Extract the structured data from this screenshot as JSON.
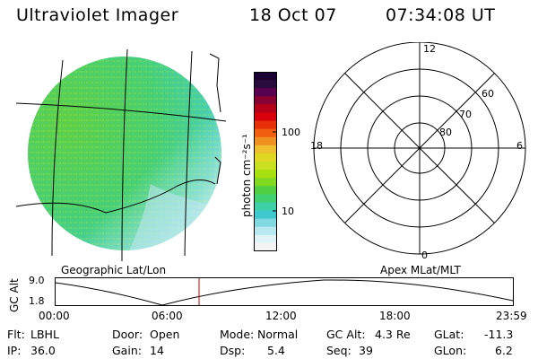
{
  "header": {
    "title": "Ultraviolet Imager",
    "date": "18 Oct 07",
    "time": "07:34:08 UT"
  },
  "colorbar": {
    "unit_label": "photon cm⁻²s⁻¹",
    "ticks": [
      "100",
      "10"
    ],
    "colors": [
      "#1a0033",
      "#2a0b3e",
      "#5a0050",
      "#8a0030",
      "#b40018",
      "#d8000c",
      "#e83008",
      "#f06010",
      "#f09020",
      "#eec030",
      "#e0d820",
      "#c8e020",
      "#a8e010",
      "#80d820",
      "#50d040",
      "#40d070",
      "#40d0a8",
      "#40c8d0",
      "#80d8e0",
      "#b8e8f0",
      "#e0f4f8",
      "#f4f4f4"
    ]
  },
  "left_map": {
    "label": "Geographic Lat/Lon"
  },
  "right_grid": {
    "label": "Apex MLat/MLT",
    "mlt_labels": {
      "top": "12",
      "bottom": "0",
      "left": "18",
      "right": "6"
    },
    "lat_labels": [
      "60",
      "70",
      "80"
    ]
  },
  "timeline": {
    "y_axis_label": "GC Alt",
    "y_ticks": [
      "9.0",
      "1.8"
    ],
    "x_ticks": [
      "00:00",
      "06:00",
      "12:00",
      "18:00",
      "23:59"
    ],
    "current_marker_time": "07:34",
    "curve_color": "#000000",
    "marker_color": "#cc0000"
  },
  "info": {
    "row1": {
      "flt_label": "Flt:",
      "flt_value": "LBHL",
      "door_label": "Door:",
      "door_value": "Open",
      "mode_label": "Mode:",
      "mode_value": "Normal",
      "gcalt_label": "GC Alt:",
      "gcalt_value": "4.3 Re",
      "glat_label": "GLat:",
      "glat_value": "-11.3"
    },
    "row2": {
      "ip_label": "IP:",
      "ip_value": "36.0",
      "gain_label": "Gain:",
      "gain_value": "14",
      "dsp_label": "Dsp:",
      "dsp_value": "5.4",
      "seq_label": "Seq:",
      "seq_value": "39",
      "glon_label": "GLon:",
      "glon_value": "6.2"
    }
  }
}
